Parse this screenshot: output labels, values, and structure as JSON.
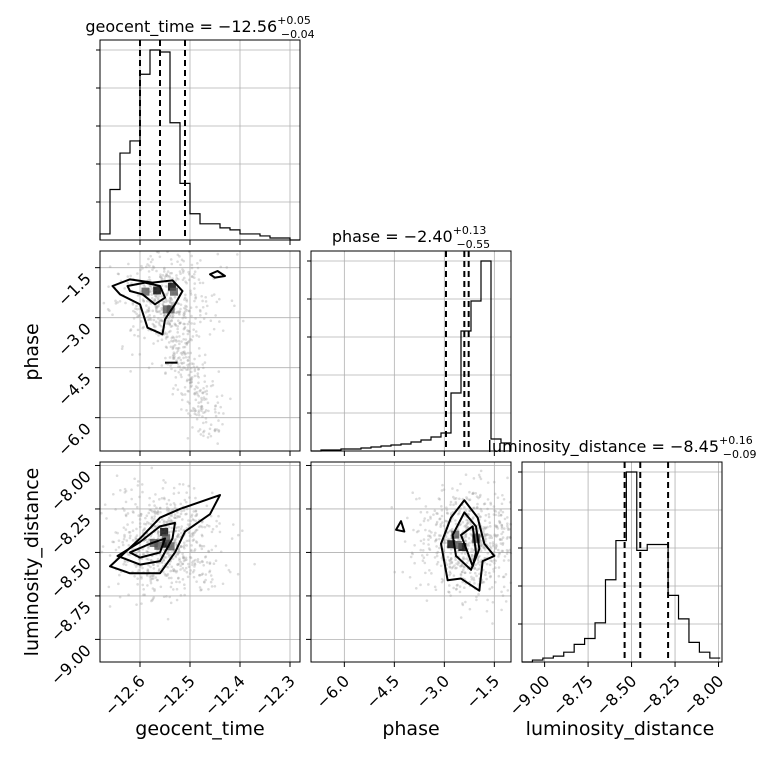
{
  "chart_data": {
    "type": "corner",
    "parameters": [
      "geocent_time",
      "phase",
      "luminosity_distance"
    ],
    "ranges": {
      "geocent_time": [
        -12.68,
        -12.28
      ],
      "phase": [
        -7.0,
        -1.0
      ],
      "luminosity_distance": [
        -9.13,
        -7.98
      ]
    },
    "ticks": {
      "geocent_time": [
        -12.6,
        -12.5,
        -12.4,
        -12.3
      ],
      "phase": [
        -6.0,
        -4.5,
        -3.0,
        -1.5
      ],
      "luminosity_distance": [
        -9.0,
        -8.75,
        -8.5,
        -8.25,
        -8.0
      ]
    },
    "tick_labels": {
      "geocent_time": [
        "−12.6",
        "−12.5",
        "−12.4",
        "−12.3"
      ],
      "phase": [
        "−6.0",
        "−4.5",
        "−3.0",
        "−1.5"
      ],
      "luminosity_distance": [
        "−9.00",
        "−8.75",
        "−8.50",
        "−8.25",
        "−8.00"
      ]
    },
    "titles": [
      {
        "param": "geocent_time",
        "text": "geocent_time = −12.56",
        "plus": "+0.05",
        "minus": "−0.04"
      },
      {
        "param": "phase",
        "text": "phase = −2.40",
        "plus": "+0.13",
        "minus": "−0.55"
      },
      {
        "param": "luminosity_distance",
        "text": "luminosity_distance = −8.45",
        "plus": "+0.16",
        "minus": "−0.09"
      }
    ],
    "quantiles": {
      "geocent_time": [
        -12.6,
        -12.56,
        -12.51
      ],
      "phase": [
        -2.95,
        -2.4,
        -2.27
      ],
      "luminosity_distance": [
        -8.54,
        -8.45,
        -8.29
      ]
    },
    "histograms": {
      "geocent_time": {
        "edges": [
          -12.68,
          -12.66,
          -12.64,
          -12.62,
          -12.6,
          -12.58,
          -12.56,
          -12.54,
          -12.52,
          -12.5,
          -12.48,
          -12.46,
          -12.44,
          -12.42,
          -12.4,
          -12.38,
          -12.36,
          -12.34,
          -12.32,
          -12.3,
          -12.28
        ],
        "counts": [
          0.03,
          0.25,
          0.43,
          0.49,
          0.82,
          0.94,
          0.93,
          0.58,
          0.28,
          0.13,
          0.08,
          0.08,
          0.06,
          0.05,
          0.03,
          0.03,
          0.02,
          0.01,
          0.01,
          0.0
        ]
      },
      "phase": {
        "edges": [
          -7.0,
          -6.7,
          -6.4,
          -6.1,
          -5.8,
          -5.5,
          -5.2,
          -4.9,
          -4.6,
          -4.3,
          -4.0,
          -3.7,
          -3.4,
          -3.1,
          -2.8,
          -2.5,
          -2.2,
          -1.9,
          -1.6,
          -1.3,
          -1.0
        ],
        "counts": [
          0.0,
          0.005,
          0.005,
          0.01,
          0.01,
          0.015,
          0.02,
          0.025,
          0.03,
          0.035,
          0.045,
          0.055,
          0.07,
          0.09,
          0.29,
          0.6,
          0.75,
          0.95,
          0.06,
          0.04
        ]
      },
      "luminosity_distance": {
        "edges": [
          -9.13,
          -9.07,
          -9.01,
          -8.95,
          -8.89,
          -8.83,
          -8.77,
          -8.71,
          -8.65,
          -8.59,
          -8.53,
          -8.47,
          -8.41,
          -8.35,
          -8.29,
          -8.23,
          -8.17,
          -8.11,
          -8.05,
          -7.99
        ],
        "counts": [
          0.0,
          0.01,
          0.02,
          0.03,
          0.05,
          0.09,
          0.12,
          0.2,
          0.42,
          0.62,
          0.97,
          0.57,
          0.6,
          0.6,
          0.34,
          0.22,
          0.1,
          0.05,
          0.02
        ]
      }
    },
    "contours": {
      "phase_vs_geocent_time": [
        [
          [
            -12.655,
            -2.05
          ],
          [
            -12.62,
            -1.85
          ],
          [
            -12.575,
            -1.95
          ],
          [
            -12.535,
            -1.88
          ],
          [
            -12.515,
            -2.2
          ],
          [
            -12.53,
            -2.6
          ],
          [
            -12.55,
            -3.05
          ],
          [
            -12.555,
            -3.5
          ],
          [
            -12.585,
            -3.3
          ],
          [
            -12.6,
            -2.6
          ],
          [
            -12.64,
            -2.3
          ]
        ],
        [
          [
            -12.625,
            -2.05
          ],
          [
            -12.59,
            -1.95
          ],
          [
            -12.56,
            -2.05
          ],
          [
            -12.55,
            -2.4
          ],
          [
            -12.57,
            -2.6
          ],
          [
            -12.595,
            -2.3
          ],
          [
            -12.62,
            -2.2
          ]
        ],
        [
          [
            -12.46,
            -1.7
          ],
          [
            -12.445,
            -1.6
          ],
          [
            -12.43,
            -1.75
          ],
          [
            -12.45,
            -1.8
          ]
        ],
        [
          [
            -12.55,
            -4.35
          ],
          [
            -12.525,
            -4.35
          ]
        ]
      ],
      "luminosity_distance_vs_geocent_time": [
        [
          [
            -12.66,
            -8.58
          ],
          [
            -12.6,
            -8.42
          ],
          [
            -12.56,
            -8.3
          ],
          [
            -12.52,
            -8.25
          ],
          [
            -12.44,
            -8.17
          ],
          [
            -12.46,
            -8.28
          ],
          [
            -12.51,
            -8.38
          ],
          [
            -12.53,
            -8.5
          ],
          [
            -12.56,
            -8.62
          ],
          [
            -12.62,
            -8.62
          ]
        ],
        [
          [
            -12.645,
            -8.52
          ],
          [
            -12.6,
            -8.44
          ],
          [
            -12.56,
            -8.35
          ],
          [
            -12.53,
            -8.33
          ],
          [
            -12.535,
            -8.42
          ],
          [
            -12.56,
            -8.55
          ],
          [
            -12.6,
            -8.57
          ]
        ],
        [
          [
            -12.62,
            -8.5
          ],
          [
            -12.58,
            -8.45
          ],
          [
            -12.55,
            -8.42
          ],
          [
            -12.56,
            -8.5
          ],
          [
            -12.6,
            -8.53
          ]
        ]
      ],
      "luminosity_distance_vs_phase": [
        [
          [
            -2.9,
            -8.66
          ],
          [
            -3.1,
            -8.45
          ],
          [
            -2.8,
            -8.3
          ],
          [
            -2.4,
            -8.2
          ],
          [
            -2.0,
            -8.3
          ],
          [
            -1.8,
            -8.45
          ],
          [
            -1.5,
            -8.52
          ],
          [
            -1.85,
            -8.55
          ],
          [
            -1.95,
            -8.72
          ],
          [
            -2.5,
            -8.65
          ]
        ],
        [
          [
            -2.65,
            -8.52
          ],
          [
            -2.75,
            -8.4
          ],
          [
            -2.4,
            -8.27
          ],
          [
            -2.05,
            -8.35
          ],
          [
            -1.95,
            -8.48
          ],
          [
            -2.2,
            -8.6
          ]
        ],
        [
          [
            -2.3,
            -8.5
          ],
          [
            -2.5,
            -8.4
          ],
          [
            -2.15,
            -8.35
          ],
          [
            -2.05,
            -8.5
          ],
          [
            -2.15,
            -8.58
          ]
        ],
        [
          [
            -4.45,
            -8.37
          ],
          [
            -4.3,
            -8.32
          ],
          [
            -4.2,
            -8.38
          ]
        ]
      ]
    },
    "xlabels": [
      "geocent_time",
      "phase",
      "luminosity_distance"
    ],
    "ylabels": [
      "phase",
      "luminosity_distance"
    ],
    "grid": true
  }
}
